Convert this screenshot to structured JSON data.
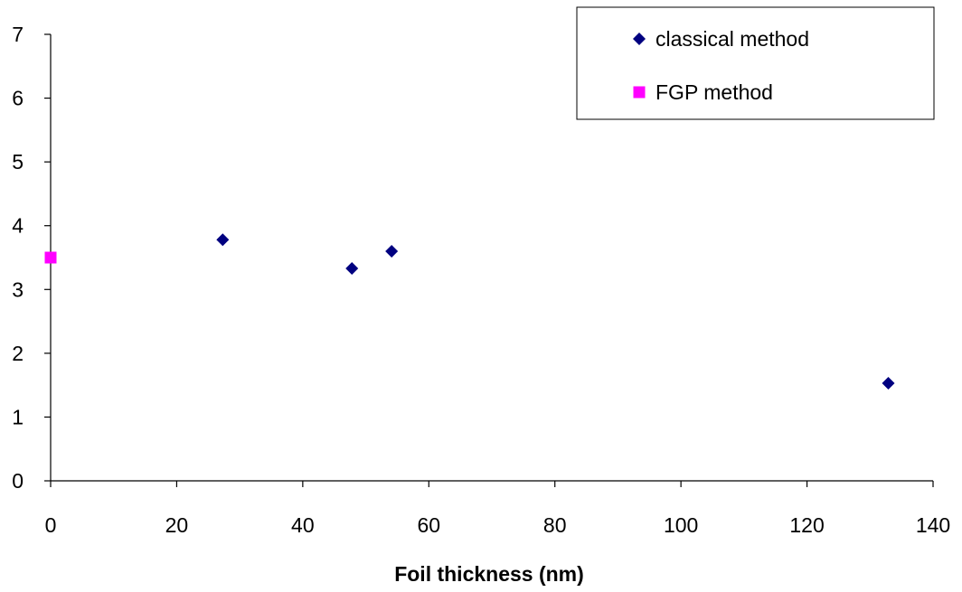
{
  "chart_data": {
    "type": "scatter",
    "title": "",
    "xlabel": "Foil thickness (nm)",
    "ylabel": "",
    "xlim": [
      0,
      140
    ],
    "ylim": [
      0,
      7
    ],
    "xticks": [
      0,
      20,
      40,
      60,
      80,
      100,
      120,
      140
    ],
    "yticks": [
      0,
      1,
      2,
      3,
      4,
      5,
      6,
      7
    ],
    "grid": false,
    "legend_position": "top-right",
    "series": [
      {
        "name": "classical method",
        "marker": "diamond",
        "color": "#000080",
        "points": [
          {
            "x": 27.3,
            "y": 3.78
          },
          {
            "x": 47.8,
            "y": 3.33
          },
          {
            "x": 54.1,
            "y": 3.6
          },
          {
            "x": 132.9,
            "y": 1.53
          }
        ]
      },
      {
        "name": "FGP method",
        "marker": "square",
        "color": "#FF00FF",
        "points": [
          {
            "x": 0,
            "y": 3.5
          }
        ]
      }
    ]
  }
}
